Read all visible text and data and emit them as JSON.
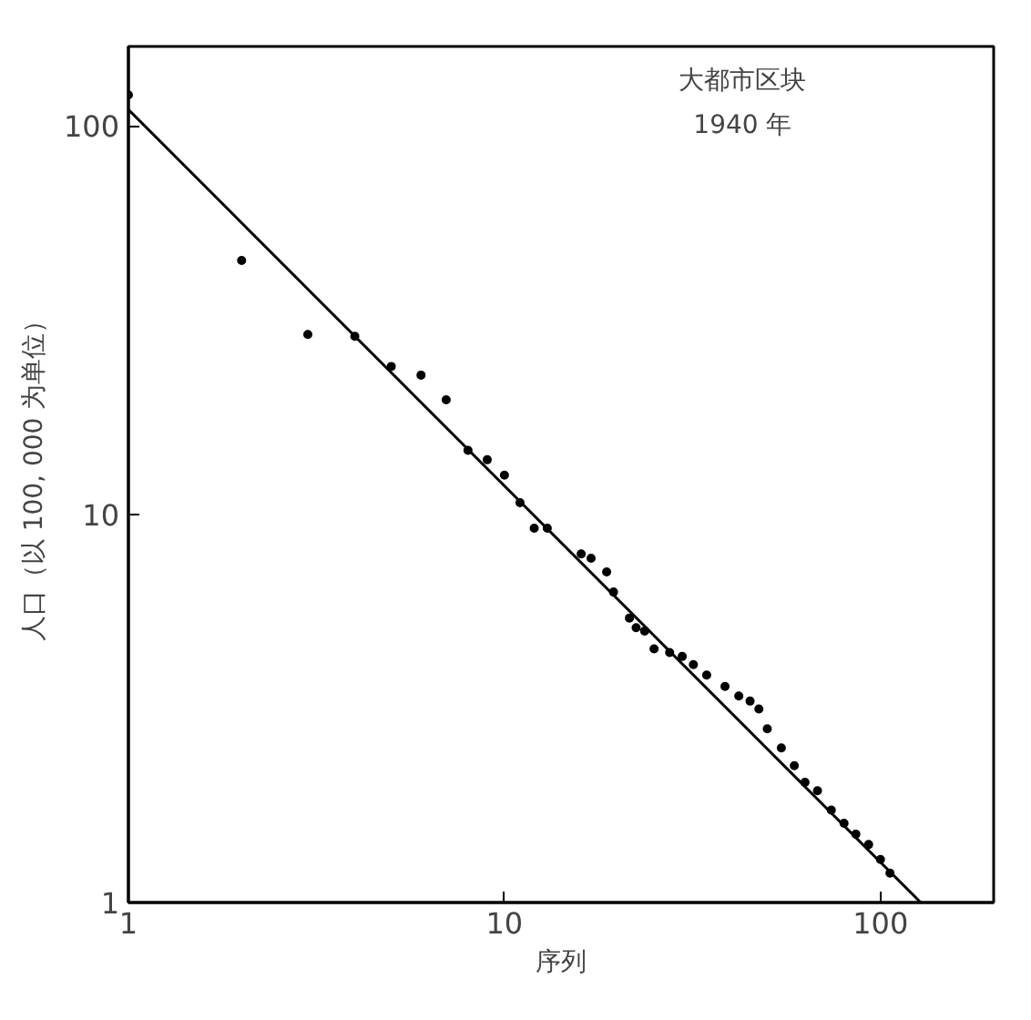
{
  "chart_data": {
    "type": "scatter",
    "xlabel": "序列",
    "ylabel": "人口（以 100, 000 为单位）",
    "annotations": [
      "大都市区块",
      "1940 年"
    ],
    "log": "xy",
    "xlim": [
      1,
      200
    ],
    "ylim": [
      1,
      160
    ],
    "xticks": [
      1,
      10,
      100
    ],
    "yticks": [
      1,
      10,
      100
    ],
    "grid": false,
    "marker": "circle",
    "series": [
      {
        "color": "#000000",
        "x": [
          1,
          2,
          3,
          4,
          5,
          6,
          7,
          8,
          9,
          10,
          11,
          12,
          13,
          16,
          17,
          18.7,
          19.5,
          21.5,
          22.4,
          23.6,
          25,
          27.5,
          29.7,
          31.8,
          34.5,
          38.6,
          42,
          45,
          47.5,
          50,
          54.5,
          59,
          63,
          68,
          74,
          80,
          86,
          93,
          100,
          106
        ],
        "values": [
          120,
          45,
          29,
          28.7,
          24,
          22.8,
          19.7,
          14.6,
          13.8,
          12.6,
          10.7,
          9.2,
          9.2,
          7.9,
          7.7,
          7.1,
          6.3,
          5.4,
          5.1,
          5.0,
          4.5,
          4.4,
          4.3,
          4.1,
          3.85,
          3.6,
          3.4,
          3.3,
          3.15,
          2.8,
          2.5,
          2.25,
          2.04,
          1.94,
          1.73,
          1.6,
          1.5,
          1.41,
          1.29,
          1.19
        ]
      },
      {
        "type": "line",
        "color": "#000000",
        "marker": "none",
        "x": [
          1,
          128
        ],
        "values": [
          110,
          1
        ]
      }
    ]
  }
}
